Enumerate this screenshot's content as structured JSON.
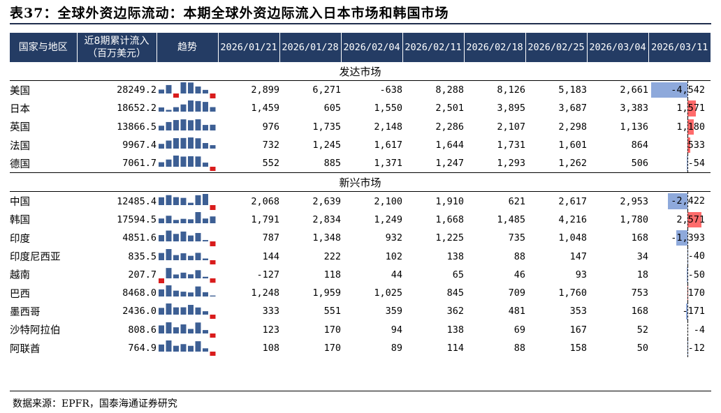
{
  "title": "表37：全球外资边际流动：本期全球外资边际流入日本市场和韩国市场",
  "header": {
    "country": "国家与地区",
    "cumulative_line1": "近8期累计流入",
    "cumulative_line2": "（百万美元）",
    "trend": "趋势",
    "dates": [
      "2026/01/21",
      "2026/01/28",
      "2026/02/04",
      "2026/02/11",
      "2026/02/18",
      "2026/02/25",
      "2026/03/04",
      "2026/03/11"
    ]
  },
  "colors": {
    "header_bg": "#243c64",
    "spark_pos": "#3d5f94",
    "spark_neg": "#d91c1c",
    "bar_pos": "#ff6b6b",
    "bar_neg": "#8ea9db"
  },
  "sections": [
    {
      "name": "发达市场",
      "rows": [
        {
          "country": "美国",
          "cumulative": "28249.2",
          "values": [
            2899,
            6271,
            -638,
            8288,
            8126,
            5183,
            2661,
            -4542
          ],
          "display": [
            "2,899",
            "6,271",
            "-638",
            "8,288",
            "8,126",
            "5,183",
            "2,661",
            "-4,542"
          ]
        },
        {
          "country": "日本",
          "cumulative": "18652.2",
          "values": [
            1459,
            605,
            1550,
            2501,
            3895,
            3687,
            3383,
            1571
          ],
          "display": [
            "1,459",
            "605",
            "1,550",
            "2,501",
            "3,895",
            "3,687",
            "3,383",
            "1,571"
          ]
        },
        {
          "country": "英国",
          "cumulative": "13866.5",
          "values": [
            976,
            1735,
            2148,
            2286,
            2107,
            2298,
            1136,
            1180
          ],
          "display": [
            "976",
            "1,735",
            "2,148",
            "2,286",
            "2,107",
            "2,298",
            "1,136",
            "1,180"
          ]
        },
        {
          "country": "法国",
          "cumulative": "9967.4",
          "values": [
            732,
            1245,
            1617,
            1644,
            1731,
            1601,
            864,
            533
          ],
          "display": [
            "732",
            "1,245",
            "1,617",
            "1,644",
            "1,731",
            "1,601",
            "864",
            "533"
          ]
        },
        {
          "country": "德国",
          "cumulative": "7061.7",
          "values": [
            552,
            885,
            1371,
            1247,
            1293,
            1262,
            506,
            -54
          ],
          "display": [
            "552",
            "885",
            "1,371",
            "1,247",
            "1,293",
            "1,262",
            "506",
            "-54"
          ]
        }
      ]
    },
    {
      "name": "新兴市场",
      "rows": [
        {
          "country": "中国",
          "cumulative": "12485.4",
          "values": [
            2068,
            2639,
            2100,
            1910,
            621,
            2617,
            2953,
            -2422
          ],
          "display": [
            "2,068",
            "2,639",
            "2,100",
            "1,910",
            "621",
            "2,617",
            "2,953",
            "-2,422"
          ]
        },
        {
          "country": "韩国",
          "cumulative": "17594.5",
          "values": [
            1791,
            2834,
            1249,
            1668,
            1485,
            4216,
            1780,
            2571
          ],
          "display": [
            "1,791",
            "2,834",
            "1,249",
            "1,668",
            "1,485",
            "4,216",
            "1,780",
            "2,571"
          ]
        },
        {
          "country": "印度",
          "cumulative": "4851.6",
          "values": [
            787,
            1348,
            932,
            1225,
            735,
            1048,
            168,
            -1393
          ],
          "display": [
            "787",
            "1,348",
            "932",
            "1,225",
            "735",
            "1,048",
            "168",
            "-1,393"
          ]
        },
        {
          "country": "印度尼西亚",
          "cumulative": "835.5",
          "values": [
            144,
            222,
            102,
            138,
            88,
            147,
            34,
            -40
          ],
          "display": [
            "144",
            "222",
            "102",
            "138",
            "88",
            "147",
            "34",
            "-40"
          ]
        },
        {
          "country": "越南",
          "cumulative": "207.7",
          "values": [
            -127,
            118,
            44,
            65,
            46,
            93,
            18,
            -50
          ],
          "display": [
            "-127",
            "118",
            "44",
            "65",
            "46",
            "93",
            "18",
            "-50"
          ]
        },
        {
          "country": "巴西",
          "cumulative": "8468.0",
          "values": [
            1248,
            1959,
            1025,
            845,
            709,
            1760,
            753,
            170
          ],
          "display": [
            "1,248",
            "1,959",
            "1,025",
            "845",
            "709",
            "1,760",
            "753",
            "170"
          ]
        },
        {
          "country": "墨西哥",
          "cumulative": "2436.0",
          "values": [
            333,
            551,
            359,
            362,
            481,
            353,
            168,
            -171
          ],
          "display": [
            "333",
            "551",
            "359",
            "362",
            "481",
            "353",
            "168",
            "-171"
          ]
        },
        {
          "country": "沙特阿拉伯",
          "cumulative": "808.6",
          "values": [
            123,
            170,
            94,
            138,
            69,
            167,
            52,
            -4
          ],
          "display": [
            "123",
            "170",
            "94",
            "138",
            "69",
            "167",
            "52",
            "-4"
          ]
        },
        {
          "country": "阿联酋",
          "cumulative": "764.9",
          "values": [
            108,
            170,
            89,
            114,
            88,
            158,
            50,
            -12
          ],
          "display": [
            "108",
            "170",
            "89",
            "114",
            "88",
            "158",
            "50",
            "-12"
          ]
        }
      ]
    }
  ],
  "source": "数据来源：EPFR，国泰海通证券研究"
}
